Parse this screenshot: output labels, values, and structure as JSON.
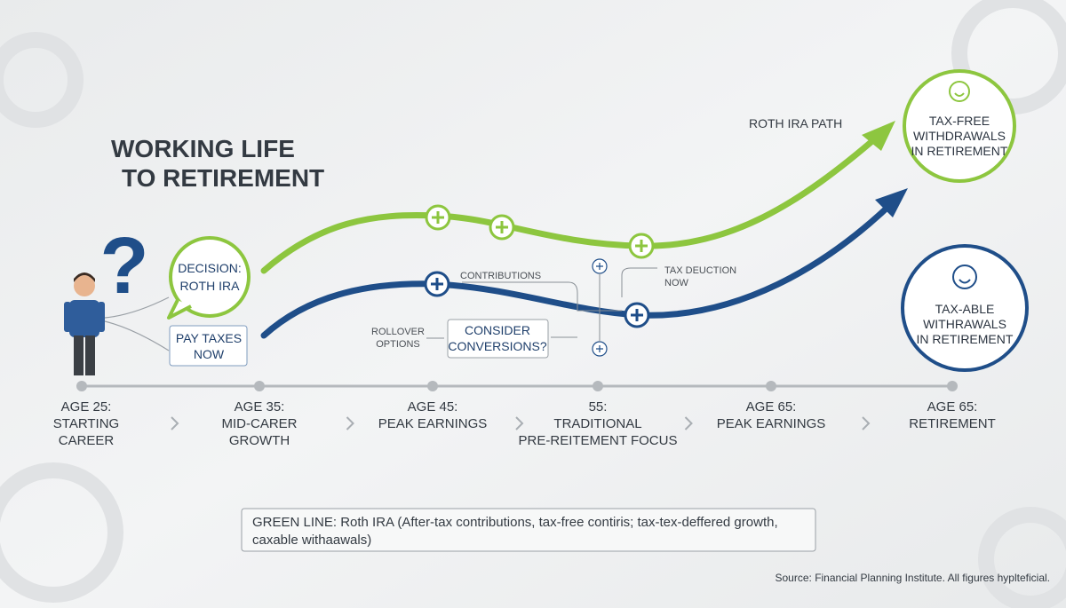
{
  "title": {
    "lines": [
      "WORKING LIFE",
      "TO RETIREMENT"
    ]
  },
  "question_mark": "?",
  "decision": {
    "lines": [
      "DECISION:",
      "ROTH IRA"
    ]
  },
  "pay_taxes": {
    "lines": [
      "PAY TAXES",
      "NOW"
    ]
  },
  "roth_path_label": "ROTH IRA PATH",
  "outcomes": [
    {
      "lines": [
        "TAX-FREE",
        "WITHDRAWALS",
        "IN RETIREMENT"
      ]
    },
    {
      "lines": [
        "TAX-ABLE",
        "WITHRAWALS",
        "IN RETIREMENT"
      ]
    }
  ],
  "annotations": {
    "contributions": "CONTRIBUTIONS",
    "tax_deduction": {
      "lines": [
        "TAX DEUCTION",
        "NOW"
      ]
    },
    "rollover": {
      "lines": [
        "ROLLOVER",
        "OPTIONS"
      ]
    },
    "consider": {
      "lines": [
        "CONSIDER",
        "CONVERSIONS?"
      ]
    }
  },
  "timeline": [
    {
      "lines": [
        "AGE 25:",
        "STARTING",
        "CAREER"
      ]
    },
    {
      "lines": [
        "AGE 35:",
        "MID-CARER",
        "GROWTH"
      ]
    },
    {
      "lines": [
        "AGE 45:",
        "PEAK EARNINGS"
      ]
    },
    {
      "lines": [
        "55:",
        "TRADITIONAL",
        "PRE-REITEMENT FOCUS"
      ]
    },
    {
      "lines": [
        "AGE 65:",
        "PEAK EARNINGS"
      ]
    },
    {
      "lines": [
        "AGE 65:",
        "RETIREMENT"
      ]
    }
  ],
  "legend": {
    "lines": [
      "GREEN LINE: Roth IRA (After-tax contributions, tax-free contiris; tax-tex-deffered growth,",
      "caxable withaawals)"
    ]
  },
  "source": "Source: Financial Planning Institute. All figures hyplteficial."
}
